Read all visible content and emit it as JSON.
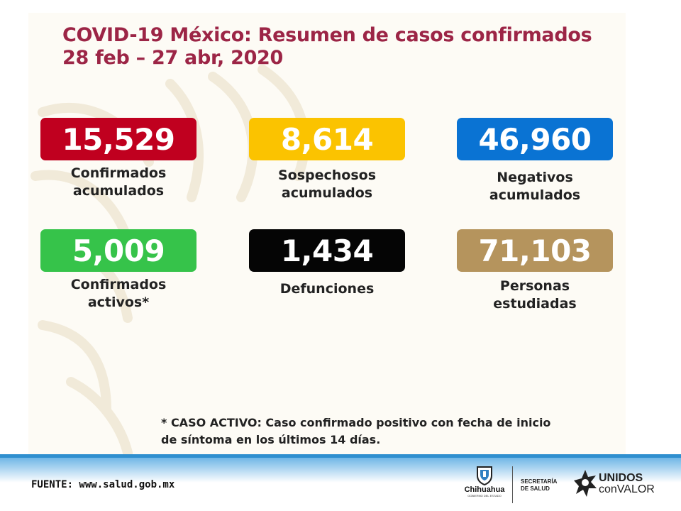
{
  "header": {
    "title_line1": "COVID-19 México: Resumen de casos confirmados",
    "title_line2": "28 feb – 27 abr, 2020"
  },
  "stats": [
    {
      "value": "15,529",
      "label_line1": "Confirmados",
      "label_line2": "acumulados",
      "color": "#c0001f"
    },
    {
      "value": "8,614",
      "label_line1": "Sospechosos",
      "label_line2": "acumulados",
      "color": "#fbc300"
    },
    {
      "value": "46,960",
      "label_line1": "Negativos",
      "label_line2": "acumulados",
      "color": "#0a73d3"
    },
    {
      "value": "5,009",
      "label_line1": "Confirmados",
      "label_line2": "activos*",
      "color": "#36c34a"
    },
    {
      "value": "1,434",
      "label_line1": "Defunciones",
      "label_line2": "",
      "color": "#050505"
    },
    {
      "value": "71,103",
      "label_line1": "Personas",
      "label_line2": "estudiadas",
      "color": "#b5945d"
    }
  ],
  "footnote": {
    "line1": "* CASO ACTIVO: Caso confirmado positivo con fecha de inicio",
    "line2": "de síntoma en los últimos 14 días."
  },
  "footer": {
    "source": "FUENTE: www.salud.gob.mx",
    "chihuahua": "Chihuahua",
    "chihuahua_sub": "GOBIERNO DEL ESTADO",
    "secretaria_line1": "SECRETARÍA",
    "secretaria_line2": "DE SALUD",
    "unidos_line1": "UNIDOS",
    "unidos_line2": "conVALOR"
  },
  "colors": {
    "title": "#9c2546",
    "footer_bar": "#2f8fcf"
  },
  "icons": {
    "chihuahua_logo": "state-shield-icon",
    "unidos_logo": "star-burst-icon",
    "watermark": "eagle-watermark-icon"
  }
}
